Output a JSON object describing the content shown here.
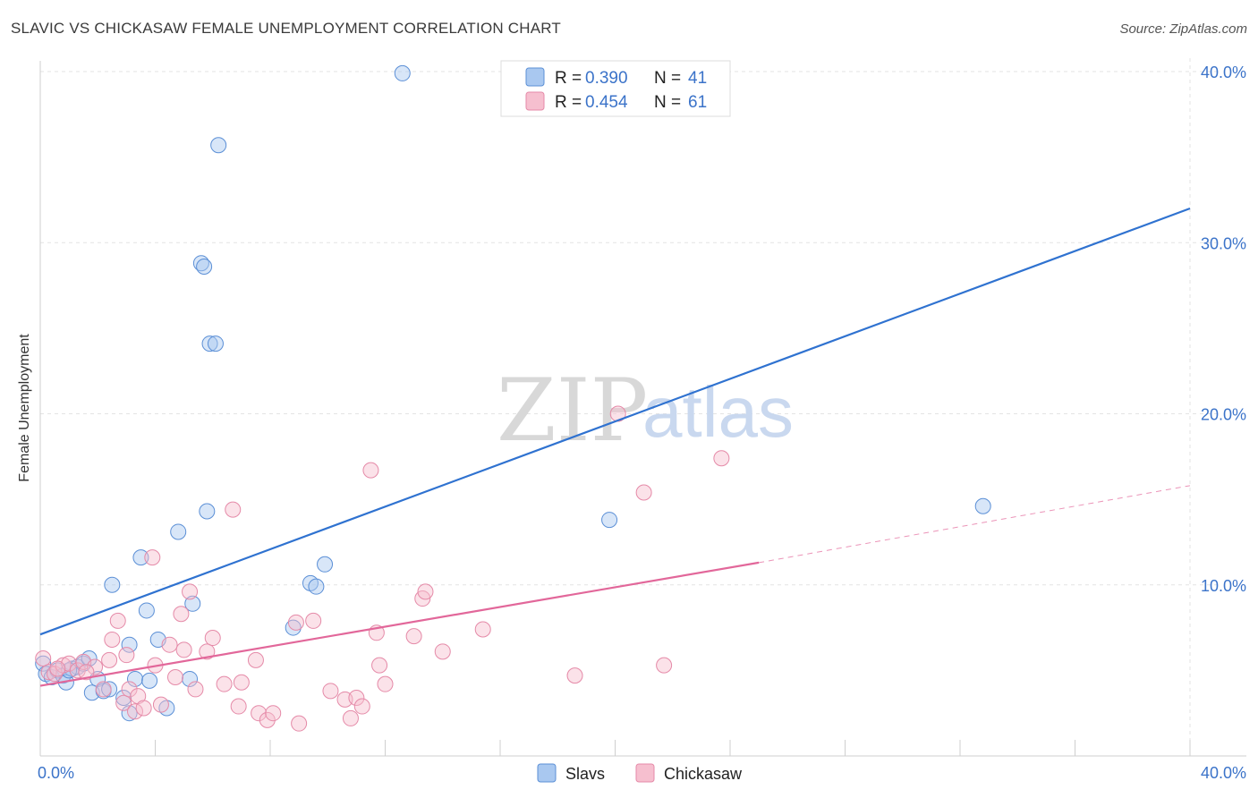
{
  "header": {
    "title": "SLAVIC VS CHICKASAW FEMALE UNEMPLOYMENT CORRELATION CHART",
    "source": "Source: ZipAtlas.com"
  },
  "watermark": {
    "zip": "ZIP",
    "atlas": "atlas"
  },
  "colors": {
    "slavs_fill": "#a9c8f0",
    "slavs_stroke": "#5b8fd6",
    "slavs_line": "#2f72d0",
    "chickasaw_fill": "#f6bfcf",
    "chickasaw_stroke": "#e58aa8",
    "chickasaw_line": "#e2679a",
    "grid": "#e3e3e3",
    "axis_label": "#3b73c9"
  },
  "chart_data": {
    "type": "scatter",
    "title": "SLAVIC VS CHICKASAW FEMALE UNEMPLOYMENT CORRELATION CHART",
    "xlabel": "",
    "ylabel": "Female Unemployment",
    "xlim": [
      0,
      40
    ],
    "ylim": [
      0,
      40
    ],
    "x_tick_labels": [
      "0.0%",
      "40.0%"
    ],
    "y_ticks": [
      10,
      20,
      30,
      40
    ],
    "y_tick_labels": [
      "10.0%",
      "20.0%",
      "30.0%",
      "40.0%"
    ],
    "legend": [
      {
        "name": "Slavs",
        "r_label": "R =",
        "r": "0.390",
        "n_label": "N =",
        "n": "41"
      },
      {
        "name": "Chickasaw",
        "r_label": "R =",
        "r": "0.454",
        "n_label": "N =",
        "n": "61"
      }
    ],
    "series": [
      {
        "name": "Slavs",
        "points": [
          [
            0.1,
            5.4
          ],
          [
            0.2,
            4.8
          ],
          [
            0.4,
            4.6
          ],
          [
            0.6,
            5.0
          ],
          [
            0.8,
            4.7
          ],
          [
            0.9,
            4.3
          ],
          [
            1.1,
            5.1
          ],
          [
            1.3,
            5.2
          ],
          [
            1.5,
            5.4
          ],
          [
            1.7,
            5.7
          ],
          [
            1.8,
            3.7
          ],
          [
            2.0,
            4.5
          ],
          [
            2.2,
            3.8
          ],
          [
            2.4,
            3.9
          ],
          [
            2.5,
            10.0
          ],
          [
            2.9,
            3.4
          ],
          [
            3.1,
            2.5
          ],
          [
            3.1,
            6.5
          ],
          [
            3.3,
            4.5
          ],
          [
            3.5,
            11.6
          ],
          [
            3.7,
            8.5
          ],
          [
            3.8,
            4.4
          ],
          [
            4.1,
            6.8
          ],
          [
            4.4,
            2.8
          ],
          [
            4.8,
            13.1
          ],
          [
            5.2,
            4.5
          ],
          [
            5.3,
            8.9
          ],
          [
            5.6,
            28.8
          ],
          [
            5.7,
            28.6
          ],
          [
            5.8,
            14.3
          ],
          [
            5.9,
            24.1
          ],
          [
            6.1,
            24.1
          ],
          [
            6.2,
            35.7
          ],
          [
            8.8,
            7.5
          ],
          [
            9.4,
            10.1
          ],
          [
            9.6,
            9.9
          ],
          [
            9.9,
            11.2
          ],
          [
            12.6,
            39.9
          ],
          [
            19.8,
            13.8
          ],
          [
            32.8,
            14.6
          ],
          [
            1.0,
            5.0
          ]
        ],
        "trend": {
          "x0": 0,
          "y0": 7.1,
          "x1": 40,
          "y1": 32.0
        }
      },
      {
        "name": "Chickasaw",
        "points": [
          [
            0.1,
            5.7
          ],
          [
            0.3,
            4.9
          ],
          [
            0.5,
            4.8
          ],
          [
            0.8,
            5.3
          ],
          [
            1.0,
            5.4
          ],
          [
            1.3,
            5.0
          ],
          [
            1.5,
            5.5
          ],
          [
            1.9,
            5.2
          ],
          [
            2.2,
            3.9
          ],
          [
            2.5,
            6.8
          ],
          [
            2.7,
            7.9
          ],
          [
            2.9,
            3.1
          ],
          [
            3.0,
            5.9
          ],
          [
            3.1,
            3.9
          ],
          [
            3.3,
            2.6
          ],
          [
            3.4,
            3.5
          ],
          [
            3.6,
            2.8
          ],
          [
            3.9,
            11.6
          ],
          [
            4.0,
            5.3
          ],
          [
            4.2,
            3.0
          ],
          [
            4.5,
            6.5
          ],
          [
            4.7,
            4.6
          ],
          [
            4.9,
            8.3
          ],
          [
            5.0,
            6.2
          ],
          [
            5.2,
            9.6
          ],
          [
            5.4,
            3.9
          ],
          [
            5.8,
            6.1
          ],
          [
            6.0,
            6.9
          ],
          [
            6.4,
            4.2
          ],
          [
            6.7,
            14.4
          ],
          [
            6.9,
            2.9
          ],
          [
            7.0,
            4.3
          ],
          [
            7.5,
            5.6
          ],
          [
            7.6,
            2.5
          ],
          [
            7.9,
            2.1
          ],
          [
            8.1,
            2.5
          ],
          [
            8.9,
            7.8
          ],
          [
            9.0,
            1.9
          ],
          [
            9.5,
            7.9
          ],
          [
            10.1,
            3.8
          ],
          [
            10.6,
            3.3
          ],
          [
            10.8,
            2.2
          ],
          [
            11.0,
            3.4
          ],
          [
            11.2,
            2.9
          ],
          [
            11.5,
            16.7
          ],
          [
            11.7,
            7.2
          ],
          [
            11.8,
            5.3
          ],
          [
            12.0,
            4.2
          ],
          [
            13.0,
            7.0
          ],
          [
            13.3,
            9.2
          ],
          [
            13.4,
            9.6
          ],
          [
            14.0,
            6.1
          ],
          [
            15.4,
            7.4
          ],
          [
            18.6,
            4.7
          ],
          [
            20.1,
            20.0
          ],
          [
            21.0,
            15.4
          ],
          [
            21.7,
            5.3
          ],
          [
            23.7,
            17.4
          ],
          [
            0.6,
            5.1
          ],
          [
            1.6,
            4.9
          ],
          [
            2.4,
            5.6
          ]
        ],
        "trend": {
          "x0": 0,
          "y0": 4.1,
          "x1": 25,
          "y1": 11.3
        },
        "trend_extended": {
          "x0": 25,
          "y0": 11.3,
          "x1": 40,
          "y1": 15.8
        }
      }
    ]
  }
}
